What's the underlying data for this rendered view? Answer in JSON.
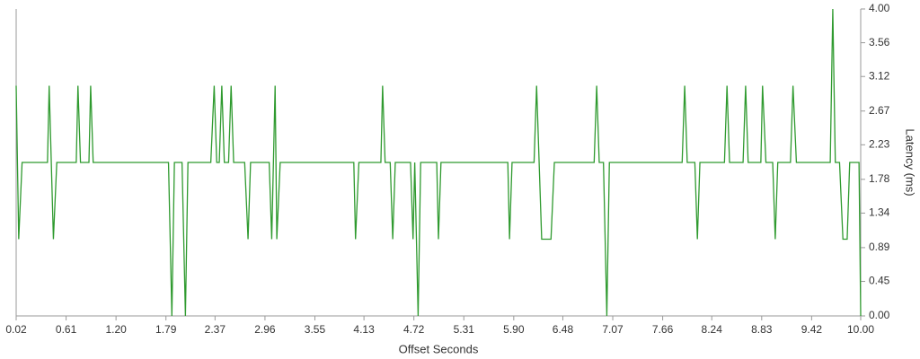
{
  "chart_data": {
    "type": "line",
    "xlabel": "Offset Seconds",
    "ylabel": "Latency (ms)",
    "xlim": [
      0.02,
      10
    ],
    "ylim": [
      0,
      4
    ],
    "xticks": [
      0.02,
      0.61,
      {
        "value": 1.2,
        "label": "1.20"
      },
      1.79,
      2.37,
      2.96,
      3.55,
      4.13,
      4.72,
      5.31,
      {
        "value": 5.9,
        "label": "5.90"
      },
      6.48,
      7.07,
      7.66,
      8.24,
      8.83,
      9.42,
      {
        "value": 10,
        "label": "10.00"
      }
    ],
    "yticks": [
      {
        "value": 0,
        "label": "0.00"
      },
      0.45,
      0.89,
      1.34,
      1.78,
      2.23,
      2.67,
      3.12,
      3.56,
      {
        "value": 4,
        "label": "4.00"
      }
    ],
    "series": [
      {
        "name": "Latency",
        "color": "#2f9a2f",
        "x": [
          0.02,
          0.05,
          0.09,
          0.39,
          0.41,
          0.46,
          0.5,
          0.73,
          0.75,
          0.78,
          0.88,
          0.9,
          0.93,
          1.82,
          1.86,
          1.89,
          1.98,
          2.02,
          2.05,
          2.32,
          2.36,
          2.39,
          2.42,
          2.45,
          2.48,
          2.53,
          2.56,
          2.59,
          2.72,
          2.76,
          2.79,
          3.01,
          3.04,
          3.08,
          3.1,
          3.14,
          4.01,
          4.03,
          4.07,
          4.33,
          4.35,
          4.38,
          4.44,
          4.47,
          4.5,
          4.68,
          4.71,
          4.73,
          4.77,
          4.8,
          4.99,
          5.01,
          5.04,
          5.83,
          5.85,
          5.88,
          6.14,
          6.17,
          6.2,
          6.23,
          6.34,
          6.38,
          6.85,
          6.88,
          6.91,
          6.96,
          7.0,
          7.03,
          7.89,
          7.92,
          7.95,
          8.04,
          8.07,
          8.1,
          8.39,
          8.42,
          8.45,
          8.61,
          8.64,
          8.67,
          8.82,
          8.84,
          8.88,
          8.96,
          8.99,
          9.02,
          9.17,
          9.2,
          9.24,
          9.64,
          9.67,
          9.7,
          9.75,
          9.79,
          9.84,
          9.87,
          9.98,
          10.0
        ],
        "values": [
          3,
          1,
          2,
          2,
          3,
          1,
          2,
          2,
          3,
          2,
          2,
          3,
          2,
          2,
          0,
          2,
          2,
          0,
          2,
          2,
          3,
          2,
          2,
          3,
          2,
          2,
          3,
          2,
          2,
          1,
          2,
          2,
          1,
          3,
          1,
          2,
          2,
          1,
          2,
          2,
          3,
          2,
          2,
          1,
          2,
          2,
          1,
          2,
          0,
          2,
          2,
          1,
          2,
          2,
          1,
          2,
          2,
          3,
          2,
          1,
          1,
          2,
          2,
          3,
          2,
          2,
          0,
          2,
          2,
          3,
          2,
          2,
          1,
          2,
          2,
          3,
          2,
          2,
          3,
          2,
          2,
          3,
          2,
          2,
          1,
          2,
          2,
          3,
          2,
          2,
          4,
          2,
          2,
          1,
          1,
          2,
          2,
          0
        ]
      }
    ]
  }
}
